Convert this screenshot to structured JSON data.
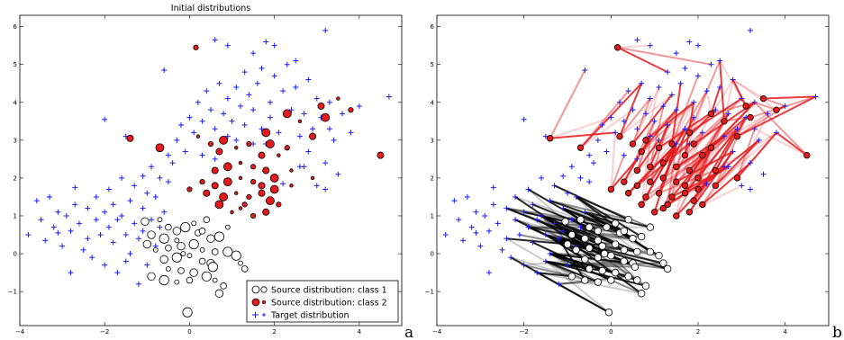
{
  "figure_labels": {
    "left": "a",
    "right": "b"
  },
  "chart_data": [
    {
      "type": "scatter",
      "title": "Initial distributions",
      "xlim": [
        -4,
        5
      ],
      "ylim": [
        -1.9,
        6.3
      ],
      "xticks": [
        -4,
        -2,
        0,
        2,
        4
      ],
      "yticks": [
        -1,
        0,
        1,
        2,
        3,
        4,
        5,
        6
      ],
      "grid": false,
      "legend_placement": "lower-right",
      "legend": [
        {
          "label": "Source distribution: class 1",
          "marker": "open-circle"
        },
        {
          "label": "Source distribution: class 2",
          "marker": "red-circle"
        },
        {
          "label": "Target distribution",
          "marker": "plus"
        }
      ],
      "colors": {
        "class1": "#ffffff",
        "class2": "#e41a1c",
        "target": "#1a1aff"
      },
      "series": [
        {
          "name": "Source distribution: class 1",
          "points": [
            [
              -0.7,
              0.9
            ],
            [
              -0.5,
              0.7
            ],
            [
              -0.3,
              0.6
            ],
            [
              -0.1,
              0.7
            ],
            [
              0.1,
              0.8
            ],
            [
              0.4,
              0.9
            ],
            [
              -0.9,
              0.5
            ],
            [
              -0.6,
              0.4
            ],
            [
              -0.3,
              0.35
            ],
            [
              0.2,
              0.55
            ],
            [
              0.5,
              0.4
            ],
            [
              0.7,
              0.45
            ],
            [
              -0.8,
              0.1
            ],
            [
              -0.5,
              0.15
            ],
            [
              -0.2,
              0.2
            ],
            [
              0.1,
              0.25
            ],
            [
              0.3,
              0.1
            ],
            [
              0.6,
              0.05
            ],
            [
              -0.6,
              -0.15
            ],
            [
              -0.3,
              -0.1
            ],
            [
              0.0,
              -0.05
            ],
            [
              0.3,
              -0.2
            ],
            [
              0.5,
              -0.25
            ],
            [
              0.9,
              0.05
            ],
            [
              -0.5,
              -0.4
            ],
            [
              -0.2,
              -0.45
            ],
            [
              0.1,
              -0.5
            ],
            [
              0.4,
              -0.6
            ],
            [
              0.6,
              -0.7
            ],
            [
              0.8,
              -0.85
            ],
            [
              -0.9,
              -0.6
            ],
            [
              -0.6,
              -0.7
            ],
            [
              -0.3,
              -0.75
            ],
            [
              0.0,
              -0.7
            ],
            [
              0.7,
              -1.05
            ],
            [
              1.1,
              -0.05
            ],
            [
              1.2,
              -0.25
            ],
            [
              1.3,
              -0.4
            ],
            [
              -1.05,
              0.85
            ],
            [
              -0.05,
              -1.55
            ],
            [
              0.9,
              0.7
            ],
            [
              0.3,
              0.6
            ],
            [
              -1.0,
              0.25
            ],
            [
              0.55,
              -0.35
            ],
            [
              -0.15,
              0.0
            ]
          ]
        },
        {
          "name": "Source distribution: class 2",
          "points": [
            [
              0.2,
              3.1
            ],
            [
              0.5,
              2.9
            ],
            [
              0.7,
              2.7
            ],
            [
              0.8,
              3.0
            ],
            [
              1.1,
              2.8
            ],
            [
              1.4,
              2.9
            ],
            [
              1.7,
              2.6
            ],
            [
              1.9,
              2.9
            ],
            [
              2.1,
              2.6
            ],
            [
              2.3,
              2.8
            ],
            [
              0.6,
              2.2
            ],
            [
              0.9,
              2.3
            ],
            [
              1.2,
              2.4
            ],
            [
              1.5,
              2.3
            ],
            [
              1.8,
              2.2
            ],
            [
              2.0,
              2.0
            ],
            [
              2.4,
              2.2
            ],
            [
              0.3,
              1.9
            ],
            [
              0.6,
              1.8
            ],
            [
              0.9,
              1.9
            ],
            [
              1.2,
              2.0
            ],
            [
              1.5,
              1.9
            ],
            [
              1.7,
              1.8
            ],
            [
              2.0,
              1.7
            ],
            [
              2.4,
              1.8
            ],
            [
              0.0,
              1.7
            ],
            [
              0.4,
              1.6
            ],
            [
              0.8,
              1.5
            ],
            [
              1.1,
              1.6
            ],
            [
              1.4,
              1.5
            ],
            [
              1.7,
              1.6
            ],
            [
              1.9,
              1.4
            ],
            [
              1.2,
              1.2
            ],
            [
              1.5,
              1.0
            ],
            [
              1.8,
              1.1
            ],
            [
              0.7,
              1.3
            ],
            [
              1.0,
              1.1
            ],
            [
              1.3,
              1.3
            ],
            [
              2.9,
              3.1
            ],
            [
              3.2,
              3.6
            ],
            [
              3.5,
              4.1
            ],
            [
              3.8,
              3.8
            ],
            [
              4.5,
              2.6
            ],
            [
              1.8,
              3.2
            ],
            [
              2.6,
              3.5
            ],
            [
              0.15,
              5.45
            ],
            [
              -1.4,
              3.05
            ],
            [
              -0.7,
              2.8
            ],
            [
              2.9,
              2.0
            ],
            [
              2.1,
              1.3
            ],
            [
              3.1,
              3.9
            ],
            [
              2.3,
              3.7
            ]
          ]
        },
        {
          "name": "Target distribution",
          "points": [
            [
              -3.8,
              0.5
            ],
            [
              -3.6,
              1.4
            ],
            [
              -3.5,
              0.9
            ],
            [
              -3.4,
              0.35
            ],
            [
              -3.3,
              1.5
            ],
            [
              -3.2,
              0.7
            ],
            [
              -3.1,
              1.1
            ],
            [
              -3.0,
              0.2
            ],
            [
              -2.9,
              1.0
            ],
            [
              -2.8,
              0.6
            ],
            [
              -2.8,
              -0.5
            ],
            [
              -2.7,
              1.3
            ],
            [
              -2.6,
              0.8
            ],
            [
              -2.5,
              0.1
            ],
            [
              -2.4,
              1.2
            ],
            [
              -2.4,
              0.4
            ],
            [
              -2.3,
              -0.1
            ],
            [
              -2.2,
              0.9
            ],
            [
              -2.2,
              1.5
            ],
            [
              -2.1,
              0.5
            ],
            [
              -2.0,
              1.1
            ],
            [
              -2.0,
              -0.3
            ],
            [
              -1.9,
              0.7
            ],
            [
              -1.9,
              1.7
            ],
            [
              -1.8,
              0.3
            ],
            [
              -1.8,
              1.3
            ],
            [
              -1.7,
              -0.5
            ],
            [
              -1.7,
              0.9
            ],
            [
              -1.6,
              2.0
            ],
            [
              -1.6,
              1.0
            ],
            [
              -1.5,
              0.5
            ],
            [
              -1.5,
              -0.2
            ],
            [
              -1.4,
              1.4
            ],
            [
              -1.4,
              0.0
            ],
            [
              -1.3,
              0.8
            ],
            [
              -1.3,
              1.8
            ],
            [
              -1.2,
              0.4
            ],
            [
              -1.2,
              -0.8
            ],
            [
              -1.1,
              1.2
            ],
            [
              -1.1,
              0.6
            ],
            [
              -1.0,
              1.6
            ],
            [
              -1.0,
              -0.3
            ],
            [
              -0.9,
              0.9
            ],
            [
              -0.9,
              2.3
            ],
            [
              -0.8,
              0.2
            ],
            [
              -0.8,
              1.5
            ],
            [
              -0.7,
              0.7
            ],
            [
              -0.7,
              2.0
            ],
            [
              -0.6,
              1.1
            ],
            [
              -0.5,
              1.9
            ],
            [
              -0.5,
              2.6
            ],
            [
              -0.4,
              2.4
            ],
            [
              -0.3,
              3.0
            ],
            [
              -0.2,
              3.4
            ],
            [
              -0.1,
              2.7
            ],
            [
              0.0,
              3.6
            ],
            [
              0.1,
              3.2
            ],
            [
              0.2,
              4.0
            ],
            [
              0.3,
              3.5
            ],
            [
              0.3,
              2.6
            ],
            [
              0.4,
              4.3
            ],
            [
              0.5,
              3.8
            ],
            [
              0.6,
              3.3
            ],
            [
              0.6,
              2.5
            ],
            [
              0.7,
              4.5
            ],
            [
              0.8,
              3.7
            ],
            [
              0.9,
              3.1
            ],
            [
              0.9,
              4.1
            ],
            [
              1.0,
              3.5
            ],
            [
              1.1,
              4.4
            ],
            [
              1.1,
              3.0
            ],
            [
              1.2,
              3.9
            ],
            [
              1.3,
              4.8
            ],
            [
              1.3,
              3.4
            ],
            [
              1.4,
              4.2
            ],
            [
              1.5,
              2.9
            ],
            [
              1.5,
              3.8
            ],
            [
              1.6,
              4.5
            ],
            [
              1.7,
              3.3
            ],
            [
              1.7,
              4.9
            ],
            [
              1.8,
              2.9
            ],
            [
              1.9,
              4.0
            ],
            [
              1.9,
              3.6
            ],
            [
              2.0,
              4.7
            ],
            [
              2.1,
              3.2
            ],
            [
              2.2,
              4.3
            ],
            [
              2.3,
              2.8
            ],
            [
              2.3,
              5.0
            ],
            [
              2.4,
              3.8
            ],
            [
              2.5,
              4.4
            ],
            [
              2.6,
              3.1
            ],
            [
              2.6,
              2.3
            ],
            [
              2.7,
              3.7
            ],
            [
              2.8,
              4.6
            ],
            [
              2.8,
              2.7
            ],
            [
              2.9,
              3.3
            ],
            [
              3.0,
              4.1
            ],
            [
              3.0,
              1.8
            ],
            [
              3.1,
              3.6
            ],
            [
              3.2,
              5.9
            ],
            [
              3.2,
              2.4
            ],
            [
              3.3,
              4.0
            ],
            [
              3.4,
              3.0
            ],
            [
              3.5,
              2.1
            ],
            [
              3.6,
              3.7
            ],
            [
              3.8,
              3.2
            ],
            [
              4.0,
              3.9
            ],
            [
              4.7,
              4.15
            ],
            [
              0.6,
              5.65
            ],
            [
              -0.6,
              4.85
            ],
            [
              -2.0,
              3.55
            ],
            [
              -2.7,
              1.75
            ],
            [
              -3.1,
              0.55
            ],
            [
              -1.1,
              2.05
            ],
            [
              2.2,
              1.85
            ],
            [
              2.7,
              2.3
            ],
            [
              3.2,
              1.7
            ],
            [
              1.5,
              5.3
            ],
            [
              2.0,
              5.5
            ],
            [
              0.9,
              5.5
            ],
            [
              1.8,
              5.6
            ],
            [
              2.5,
              5.1
            ],
            [
              -1.5,
              3.1
            ],
            [
              3.3,
              3.3
            ]
          ]
        }
      ]
    },
    {
      "type": "scatter",
      "title": "",
      "xlim": [
        -4,
        5
      ],
      "ylim": [
        -1.9,
        6.3
      ],
      "xticks": [
        -4,
        -2,
        0,
        2,
        4
      ],
      "yticks": [
        -1,
        0,
        1,
        2,
        3,
        4,
        5,
        6
      ],
      "grid": false,
      "note_visual": "same points with transport lines from each source point to target points (black for class 1, red for class 2)"
    }
  ]
}
